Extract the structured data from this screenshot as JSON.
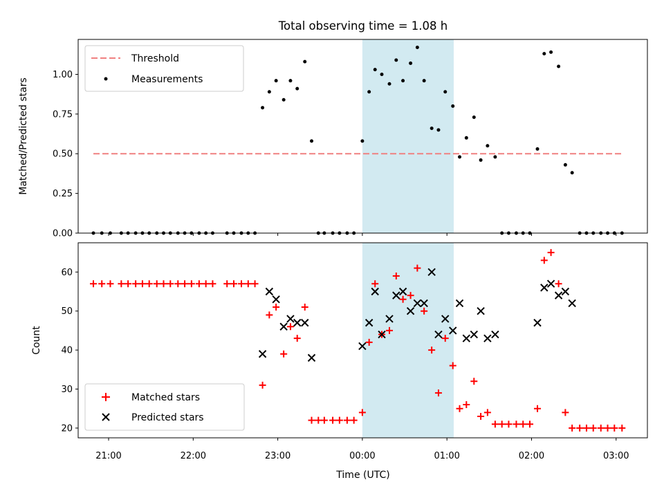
{
  "chart_data": {
    "type": "scatter",
    "title": "Total observing time = 1.08 h",
    "xlabel": "Time (UTC)",
    "x_tick_labels": [
      "21:00",
      "22:00",
      "23:00",
      "00:00",
      "01:00",
      "02:00",
      "03:00"
    ],
    "x_ticks_hours": [
      21,
      22,
      23,
      24,
      25,
      26,
      27
    ],
    "xlim_hours": [
      20.64,
      27.37
    ],
    "shaded_interval_hours": [
      24.0,
      25.08
    ],
    "colors": {
      "threshold": "#f08080",
      "measurements": "#000000",
      "matched": "#ff0000",
      "predicted": "#000000",
      "shade": "#add8e6"
    },
    "top": {
      "ylabel": "Matched/Predicted stars",
      "ylim": [
        0,
        1.22
      ],
      "yticks": [
        0,
        0.25,
        0.5,
        0.75,
        1.0
      ],
      "ytick_labels": [
        "0.00",
        "0.25",
        "0.50",
        "0.75",
        "1.00"
      ],
      "legend": {
        "position": "top-left",
        "entries": [
          "Threshold",
          "Measurements"
        ]
      },
      "threshold": {
        "name": "Threshold",
        "value": 0.5,
        "x_range_hours": [
          20.82,
          27.08
        ]
      },
      "measurements": {
        "name": "Measurements",
        "x": [
          20.82,
          20.92,
          21.02,
          21.15,
          21.23,
          21.32,
          21.4,
          21.48,
          21.57,
          21.65,
          21.73,
          21.82,
          21.9,
          21.98,
          22.07,
          22.15,
          22.23,
          22.4,
          22.48,
          22.57,
          22.65,
          22.73,
          22.82,
          22.9,
          22.98,
          23.07,
          23.15,
          23.23,
          23.32,
          23.4,
          23.48,
          23.55,
          23.65,
          23.73,
          23.82,
          23.9,
          24.0,
          24.08,
          24.15,
          24.23,
          24.32,
          24.4,
          24.48,
          24.57,
          24.65,
          24.73,
          24.82,
          24.9,
          24.98,
          25.07,
          25.15,
          25.23,
          25.32,
          25.4,
          25.48,
          25.57,
          25.65,
          25.73,
          25.82,
          25.9,
          25.98,
          26.07,
          26.15,
          26.23,
          26.32,
          26.4,
          26.48,
          26.57,
          26.65,
          26.73,
          26.82,
          26.9,
          26.98,
          27.07
        ],
        "y": [
          0,
          0,
          0,
          0,
          0,
          0,
          0,
          0,
          0,
          0,
          0,
          0,
          0,
          0,
          0,
          0,
          0,
          0,
          0,
          0,
          0,
          0,
          0.79,
          0.89,
          0.96,
          0.84,
          0.96,
          0.91,
          1.08,
          0.58,
          0,
          0,
          0,
          0,
          0,
          0,
          0.58,
          0.89,
          1.03,
          1.0,
          0.94,
          1.09,
          0.96,
          1.07,
          1.17,
          0.96,
          0.66,
          0.65,
          0.89,
          0.8,
          0.48,
          0.6,
          0.73,
          0.46,
          0.55,
          0.48,
          0,
          0,
          0,
          0,
          0,
          0.53,
          1.13,
          1.14,
          1.05,
          0.43,
          0.38,
          0,
          0,
          0,
          0,
          0,
          0,
          0
        ]
      }
    },
    "bottom": {
      "ylabel": "Count",
      "ylim": [
        17.5,
        67.5
      ],
      "yticks": [
        20,
        30,
        40,
        50,
        60
      ],
      "ytick_labels": [
        "20",
        "30",
        "40",
        "50",
        "60"
      ],
      "legend": {
        "position": "bottom-left",
        "entries": [
          "Matched stars",
          "Predicted stars"
        ]
      },
      "matched": {
        "name": "Matched stars",
        "x": [
          20.82,
          20.92,
          21.02,
          21.15,
          21.23,
          21.32,
          21.4,
          21.48,
          21.57,
          21.65,
          21.73,
          21.82,
          21.9,
          21.98,
          22.07,
          22.15,
          22.23,
          22.4,
          22.48,
          22.57,
          22.65,
          22.73,
          22.82,
          22.9,
          22.98,
          23.07,
          23.15,
          23.23,
          23.32,
          23.4,
          23.48,
          23.55,
          23.65,
          23.73,
          23.82,
          23.9,
          24.0,
          24.08,
          24.15,
          24.23,
          24.32,
          24.4,
          24.48,
          24.57,
          24.65,
          24.73,
          24.82,
          24.9,
          24.98,
          25.07,
          25.15,
          25.23,
          25.32,
          25.4,
          25.48,
          25.57,
          25.65,
          25.73,
          25.82,
          25.9,
          25.98,
          26.07,
          26.15,
          26.23,
          26.32,
          26.4,
          26.48,
          26.57,
          26.65,
          26.73,
          26.82,
          26.9,
          26.98,
          27.07
        ],
        "y": [
          57,
          57,
          57,
          57,
          57,
          57,
          57,
          57,
          57,
          57,
          57,
          57,
          57,
          57,
          57,
          57,
          57,
          57,
          57,
          57,
          57,
          57,
          31,
          49,
          51,
          39,
          46,
          43,
          51,
          22,
          22,
          22,
          22,
          22,
          22,
          22,
          24,
          42,
          57,
          44,
          45,
          59,
          53,
          54,
          61,
          50,
          40,
          29,
          43,
          36,
          25,
          26,
          32,
          23,
          24,
          21,
          21,
          21,
          21,
          21,
          21,
          25,
          63,
          65,
          57,
          24,
          20,
          20,
          20,
          20,
          20,
          20,
          20,
          20
        ]
      },
      "predicted": {
        "name": "Predicted stars",
        "x": [
          22.82,
          22.9,
          22.98,
          23.07,
          23.15,
          23.23,
          23.32,
          23.4,
          24.0,
          24.08,
          24.15,
          24.23,
          24.32,
          24.4,
          24.48,
          24.57,
          24.65,
          24.73,
          24.82,
          24.9,
          24.98,
          25.07,
          25.15,
          25.23,
          25.32,
          25.4,
          25.48,
          25.57,
          26.07,
          26.15,
          26.23,
          26.32,
          26.4,
          26.48
        ],
        "y": [
          39,
          55,
          53,
          46,
          48,
          47,
          47,
          38,
          41,
          47,
          55,
          44,
          48,
          54,
          55,
          50,
          52,
          52,
          60,
          44,
          48,
          45,
          52,
          43,
          44,
          50,
          43,
          44,
          47,
          56,
          57,
          54,
          55,
          52
        ]
      }
    }
  }
}
